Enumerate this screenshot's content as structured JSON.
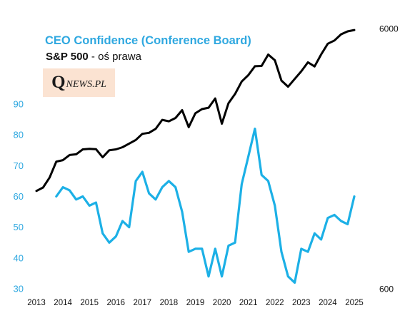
{
  "header": {
    "title": "CEO Confidence (Conference Board)",
    "subtitle_bold": "S&P 500",
    "subtitle_rest": " - oś prawa"
  },
  "logo": {
    "q": "Q",
    "rest": "NEWS.PL"
  },
  "colors": {
    "ceo": "#1cb0e6",
    "sp500": "#000000",
    "left_axis_text": "#2fa8e0"
  },
  "chart_data": {
    "type": "line",
    "x_ticks": [
      "2013",
      "2014",
      "2015",
      "2016",
      "2017",
      "2018",
      "2019",
      "2020",
      "2021",
      "2022",
      "2023",
      "2024",
      "2025"
    ],
    "x_range": [
      2013,
      2025.8
    ],
    "left_axis": {
      "label": "",
      "ylim": [
        30,
        100
      ],
      "ticks": [
        "30",
        "40",
        "50",
        "60",
        "70",
        "80",
        "90"
      ]
    },
    "right_axis": {
      "label": "",
      "scale": "log",
      "ylim": [
        600,
        6000
      ],
      "ticks": [
        "600",
        "6000"
      ]
    },
    "grid": false,
    "series": [
      {
        "name": "CEO Confidence (Conference Board)",
        "axis": "left",
        "x": [
          2013.75,
          2014.0,
          2014.25,
          2014.5,
          2014.75,
          2015.0,
          2015.25,
          2015.5,
          2015.75,
          2016.0,
          2016.25,
          2016.5,
          2016.75,
          2017.0,
          2017.25,
          2017.5,
          2017.75,
          2018.0,
          2018.25,
          2018.5,
          2018.75,
          2019.0,
          2019.25,
          2019.5,
          2019.75,
          2020.0,
          2020.25,
          2020.5,
          2020.75,
          2021.0,
          2021.25,
          2021.5,
          2021.75,
          2022.0,
          2022.25,
          2022.5,
          2022.75,
          2023.0,
          2023.25,
          2023.5,
          2023.75,
          2024.0,
          2024.25,
          2024.5,
          2024.75,
          2025.0
        ],
        "values": [
          60,
          63,
          62,
          59,
          60,
          57,
          58,
          48,
          45,
          47,
          52,
          50,
          65,
          68,
          61,
          59,
          63,
          65,
          63,
          55,
          42,
          43,
          43,
          34,
          43,
          34,
          44,
          45,
          64,
          73,
          82,
          67,
          65,
          57,
          42,
          34,
          32,
          43,
          42,
          48,
          46,
          53,
          54,
          52,
          51,
          60
        ]
      },
      {
        "name": "S&P 500",
        "axis": "right",
        "x": [
          2013.0,
          2013.25,
          2013.5,
          2013.75,
          2014.0,
          2014.25,
          2014.5,
          2014.75,
          2015.0,
          2015.25,
          2015.5,
          2015.75,
          2016.0,
          2016.25,
          2016.5,
          2016.75,
          2017.0,
          2017.25,
          2017.5,
          2017.75,
          2018.0,
          2018.25,
          2018.5,
          2018.75,
          2019.0,
          2019.25,
          2019.5,
          2019.75,
          2020.0,
          2020.25,
          2020.5,
          2020.75,
          2021.0,
          2021.25,
          2021.5,
          2021.75,
          2022.0,
          2022.25,
          2022.5,
          2022.75,
          2023.0,
          2023.25,
          2023.5,
          2023.75,
          2024.0,
          2024.25,
          2024.5,
          2024.75,
          2025.0
        ],
        "values": [
          1426,
          1470,
          1606,
          1848,
          1872,
          1960,
          1972,
          2059,
          2068,
          2063,
          1920,
          2044,
          2060,
          2099,
          2168,
          2239,
          2363,
          2384,
          2470,
          2674,
          2641,
          2718,
          2914,
          2507,
          2834,
          2942,
          2977,
          3231,
          2585,
          3100,
          3363,
          3756,
          3973,
          4298,
          4308,
          4766,
          4530,
          3785,
          3586,
          3840,
          4109,
          4450,
          4289,
          4770,
          5244,
          5396,
          5700,
          5850,
          5920
        ]
      }
    ]
  }
}
